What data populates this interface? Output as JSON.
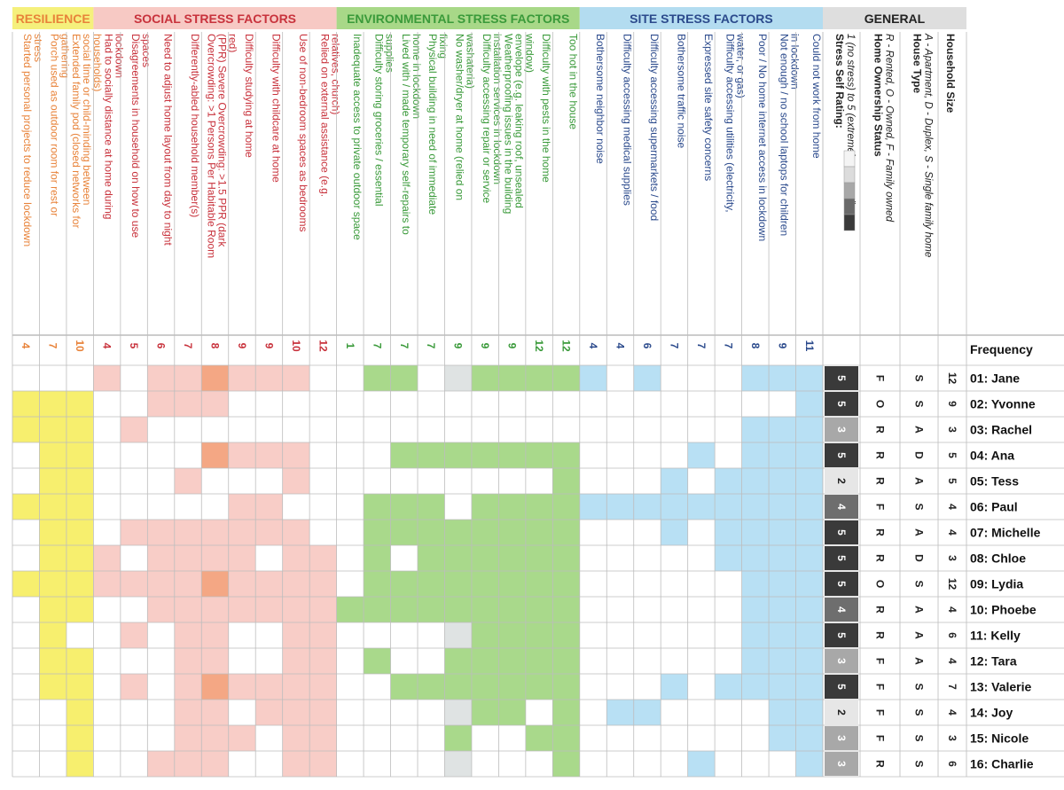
{
  "groups": [
    {
      "key": "res",
      "label": "RESILIENCE",
      "text_color": "#e8833a",
      "header_bg": "#f5f07c",
      "cell_color": "#f7ef6e"
    },
    {
      "key": "soc",
      "label": "SOCIAL STRESS FACTORS",
      "text_color": "#c8323c",
      "header_bg": "#f7c9c4",
      "cell_color": "#f8cdc7",
      "strong_color": "#f4a784"
    },
    {
      "key": "env",
      "label": "ENVIRONMENTAL STRESS FACTORS",
      "text_color": "#3a9a3a",
      "header_bg": "#a8d888",
      "cell_color": "#a9d98b",
      "alt_color": "#dfe3e3"
    },
    {
      "key": "site",
      "label": "SITE STRESS FACTORS",
      "text_color": "#2b4a8c",
      "header_bg": "#b3dcf0",
      "cell_color": "#b8e0f4"
    },
    {
      "key": "gen",
      "label": "GENERAL",
      "text_color": "#222222",
      "header_bg": "#dedede"
    }
  ],
  "general_columns": [
    {
      "title": "Stress Self Rating:",
      "subtitle": "1 (no stress) to 5 (extremely stressed)"
    },
    {
      "title": "Home Ownership Status",
      "subtitle": "R - Rented, O - Owned, F - Family owned"
    },
    {
      "title": "House Type",
      "subtitle": "A - Apartment, D - Duplex, S - Single family home"
    },
    {
      "title": "Household Size",
      "subtitle": ""
    }
  ],
  "legend_shades": [
    "#f4f4f4",
    "#dcdcdc",
    "#a8a8a8",
    "#6a6a6a",
    "#3a3a3a"
  ],
  "frequency_label": "Frequency",
  "chart_data": {
    "type": "table",
    "factors": [
      {
        "group": "res",
        "label": "Started personal projects to reduce lockdown stress",
        "frequency": 4
      },
      {
        "group": "res",
        "label": "Porch used as outdoor room for rest or gathering",
        "frequency": 7
      },
      {
        "group": "res",
        "label": "Extended family pod (closed networks for social time or child-minding between households)",
        "frequency": 10
      },
      {
        "group": "soc",
        "label": "Had to socially distance at home during lockdown",
        "frequency": 4
      },
      {
        "group": "soc",
        "label": "Disagreements in household on how to use spaces",
        "frequency": 5
      },
      {
        "group": "soc",
        "label": "Need to adjust home layout from day to night",
        "frequency": 6
      },
      {
        "group": "soc",
        "label": "Differently-abled household member(s)",
        "frequency": 7
      },
      {
        "group": "soc",
        "label": "Overcrowding: >1 Persons Per Habitable Room (PPR) Severe Overcrowding: >1.5 PPR (dark red)",
        "frequency": 8
      },
      {
        "group": "soc",
        "label": "Difficulty studying at home",
        "frequency": 9
      },
      {
        "group": "soc",
        "label": "Difficulty with childcare at home",
        "frequency": 9
      },
      {
        "group": "soc",
        "label": "Use of non-bedroom spaces as bedrooms",
        "frequency": 10
      },
      {
        "group": "soc",
        "label": "Relied on external assistance (e.g. relatives, church)",
        "frequency": 12
      },
      {
        "group": "env",
        "label": "Inadequate access to private outdoor space",
        "frequency": 1
      },
      {
        "group": "env",
        "label": "Difficulty storing groceries / essential supplies",
        "frequency": 7
      },
      {
        "group": "env",
        "label": "Lived with / made temporary self-repairs to home in lockdown",
        "frequency": 7
      },
      {
        "group": "env",
        "label": "Physical building in need of immediate fixing",
        "frequency": 7
      },
      {
        "group": "env",
        "label": "No washer/dryer at home (relied on washateria)",
        "frequency": 9
      },
      {
        "group": "env",
        "label": "Difficulty accessing repair or service installation services in lockdown",
        "frequency": 9
      },
      {
        "group": "env",
        "label": "Weatherproofing issues in the building envelope (e.g. leaking roof, unsealed window)",
        "frequency": 9
      },
      {
        "group": "env",
        "label": "Difficulty with pests in the home",
        "frequency": 12
      },
      {
        "group": "env",
        "label": "Too hot in the house",
        "frequency": 12
      },
      {
        "group": "site",
        "label": "Bothersome neighbor noise",
        "frequency": 4
      },
      {
        "group": "site",
        "label": "Difficulty accessing medical supplies",
        "frequency": 4
      },
      {
        "group": "site",
        "label": "Difficulty accessing supermarkets / food",
        "frequency": 6
      },
      {
        "group": "site",
        "label": "Bothersome traffic noise",
        "frequency": 7
      },
      {
        "group": "site",
        "label": "Expressed site safety concerns",
        "frequency": 7
      },
      {
        "group": "site",
        "label": "Difficulty accessing utilities (electricity, water, or gas)",
        "frequency": 7
      },
      {
        "group": "site",
        "label": "Poor / No home internet access in lockdown",
        "frequency": 8
      },
      {
        "group": "site",
        "label": "Not enough / no school laptops for children in lockdown",
        "frequency": 9
      },
      {
        "group": "site",
        "label": "Could not work from home",
        "frequency": 11
      }
    ],
    "households": [
      {
        "name": "01: Jane",
        "stress": 5,
        "ownership": "F",
        "house": "S",
        "size": 12,
        "cells": [
          0,
          0,
          0,
          1,
          0,
          1,
          1,
          2,
          1,
          1,
          1,
          0,
          0,
          1,
          1,
          0,
          3,
          1,
          1,
          1,
          1,
          1,
          0,
          1,
          0,
          0,
          0,
          1,
          1,
          1
        ]
      },
      {
        "name": "02: Yvonne",
        "stress": 5,
        "ownership": "O",
        "house": "S",
        "size": 9,
        "cells": [
          1,
          1,
          1,
          0,
          0,
          1,
          1,
          1,
          0,
          0,
          0,
          0,
          0,
          0,
          0,
          0,
          0,
          0,
          0,
          0,
          0,
          0,
          0,
          0,
          0,
          0,
          0,
          0,
          0,
          1
        ]
      },
      {
        "name": "03: Rachel",
        "stress": 3,
        "ownership": "R",
        "house": "A",
        "size": 3,
        "cells": [
          1,
          1,
          1,
          0,
          1,
          0,
          0,
          0,
          0,
          0,
          0,
          0,
          0,
          0,
          0,
          0,
          0,
          0,
          0,
          0,
          0,
          0,
          0,
          0,
          0,
          0,
          0,
          1,
          1,
          1
        ]
      },
      {
        "name": "04: Ana",
        "stress": 5,
        "ownership": "R",
        "house": "D",
        "size": 5,
        "cells": [
          0,
          1,
          1,
          0,
          0,
          0,
          0,
          2,
          1,
          1,
          1,
          0,
          0,
          0,
          1,
          1,
          1,
          1,
          1,
          1,
          1,
          0,
          0,
          0,
          0,
          1,
          0,
          1,
          1,
          1
        ]
      },
      {
        "name": "05: Tess",
        "stress": 2,
        "ownership": "R",
        "house": "A",
        "size": 5,
        "cells": [
          0,
          1,
          1,
          0,
          0,
          0,
          1,
          0,
          0,
          0,
          1,
          0,
          0,
          0,
          0,
          0,
          0,
          0,
          0,
          0,
          1,
          0,
          0,
          0,
          1,
          0,
          1,
          1,
          1,
          1
        ]
      },
      {
        "name": "06: Paul",
        "stress": 4,
        "ownership": "F",
        "house": "S",
        "size": 4,
        "cells": [
          1,
          1,
          1,
          0,
          0,
          0,
          0,
          0,
          1,
          1,
          0,
          0,
          0,
          1,
          1,
          1,
          0,
          1,
          1,
          1,
          1,
          1,
          1,
          1,
          1,
          1,
          1,
          1,
          1,
          1
        ]
      },
      {
        "name": "07: Michelle",
        "stress": 5,
        "ownership": "R",
        "house": "A",
        "size": 4,
        "cells": [
          0,
          1,
          1,
          0,
          1,
          1,
          1,
          1,
          1,
          1,
          1,
          0,
          0,
          1,
          1,
          1,
          1,
          1,
          1,
          1,
          1,
          0,
          0,
          0,
          1,
          0,
          1,
          1,
          1,
          1
        ]
      },
      {
        "name": "08: Chloe",
        "stress": 5,
        "ownership": "R",
        "house": "D",
        "size": 3,
        "cells": [
          0,
          1,
          1,
          1,
          0,
          1,
          1,
          1,
          1,
          0,
          1,
          1,
          0,
          1,
          0,
          1,
          1,
          1,
          1,
          1,
          1,
          0,
          0,
          0,
          0,
          0,
          1,
          1,
          1,
          1
        ]
      },
      {
        "name": "09: Lydia",
        "stress": 5,
        "ownership": "O",
        "house": "S",
        "size": 12,
        "cells": [
          1,
          1,
          1,
          1,
          1,
          1,
          1,
          2,
          1,
          1,
          1,
          1,
          0,
          1,
          1,
          1,
          1,
          1,
          1,
          1,
          1,
          0,
          0,
          0,
          0,
          0,
          0,
          1,
          1,
          1
        ]
      },
      {
        "name": "10: Phoebe",
        "stress": 4,
        "ownership": "R",
        "house": "A",
        "size": 4,
        "cells": [
          0,
          1,
          1,
          0,
          0,
          1,
          1,
          1,
          1,
          1,
          1,
          1,
          1,
          1,
          1,
          1,
          1,
          1,
          1,
          1,
          1,
          0,
          0,
          0,
          0,
          0,
          0,
          1,
          1,
          1
        ]
      },
      {
        "name": "11: Kelly",
        "stress": 5,
        "ownership": "R",
        "house": "A",
        "size": 6,
        "cells": [
          0,
          1,
          0,
          0,
          1,
          0,
          1,
          1,
          0,
          0,
          1,
          1,
          0,
          0,
          0,
          0,
          3,
          1,
          1,
          1,
          1,
          0,
          0,
          0,
          0,
          0,
          0,
          1,
          1,
          1
        ]
      },
      {
        "name": "12: Tara",
        "stress": 3,
        "ownership": "F",
        "house": "A",
        "size": 4,
        "cells": [
          0,
          1,
          1,
          0,
          0,
          0,
          1,
          1,
          0,
          0,
          1,
          1,
          0,
          1,
          0,
          0,
          1,
          1,
          1,
          1,
          1,
          0,
          0,
          0,
          0,
          0,
          0,
          1,
          1,
          1
        ]
      },
      {
        "name": "13: Valerie",
        "stress": 5,
        "ownership": "F",
        "house": "S",
        "size": 7,
        "cells": [
          0,
          1,
          1,
          0,
          1,
          0,
          1,
          2,
          1,
          1,
          1,
          1,
          0,
          0,
          1,
          1,
          1,
          1,
          1,
          1,
          1,
          0,
          0,
          0,
          1,
          0,
          1,
          1,
          1,
          1
        ]
      },
      {
        "name": "14: Joy",
        "stress": 2,
        "ownership": "F",
        "house": "S",
        "size": 4,
        "cells": [
          0,
          0,
          1,
          0,
          0,
          0,
          1,
          1,
          0,
          1,
          1,
          1,
          0,
          0,
          0,
          0,
          3,
          1,
          1,
          0,
          1,
          0,
          1,
          1,
          0,
          0,
          0,
          0,
          1,
          1
        ]
      },
      {
        "name": "15: Nicole",
        "stress": 3,
        "ownership": "F",
        "house": "S",
        "size": 3,
        "cells": [
          0,
          0,
          1,
          0,
          0,
          0,
          1,
          1,
          1,
          0,
          1,
          1,
          0,
          0,
          0,
          0,
          1,
          0,
          0,
          1,
          1,
          0,
          0,
          0,
          0,
          0,
          0,
          0,
          1,
          1
        ]
      },
      {
        "name": "16: Charlie",
        "stress": 3,
        "ownership": "R",
        "house": "S",
        "size": 6,
        "cells": [
          0,
          0,
          1,
          0,
          0,
          1,
          1,
          1,
          0,
          0,
          1,
          1,
          0,
          0,
          0,
          0,
          3,
          0,
          0,
          0,
          1,
          0,
          0,
          0,
          0,
          1,
          0,
          0,
          0,
          1
        ]
      }
    ]
  }
}
